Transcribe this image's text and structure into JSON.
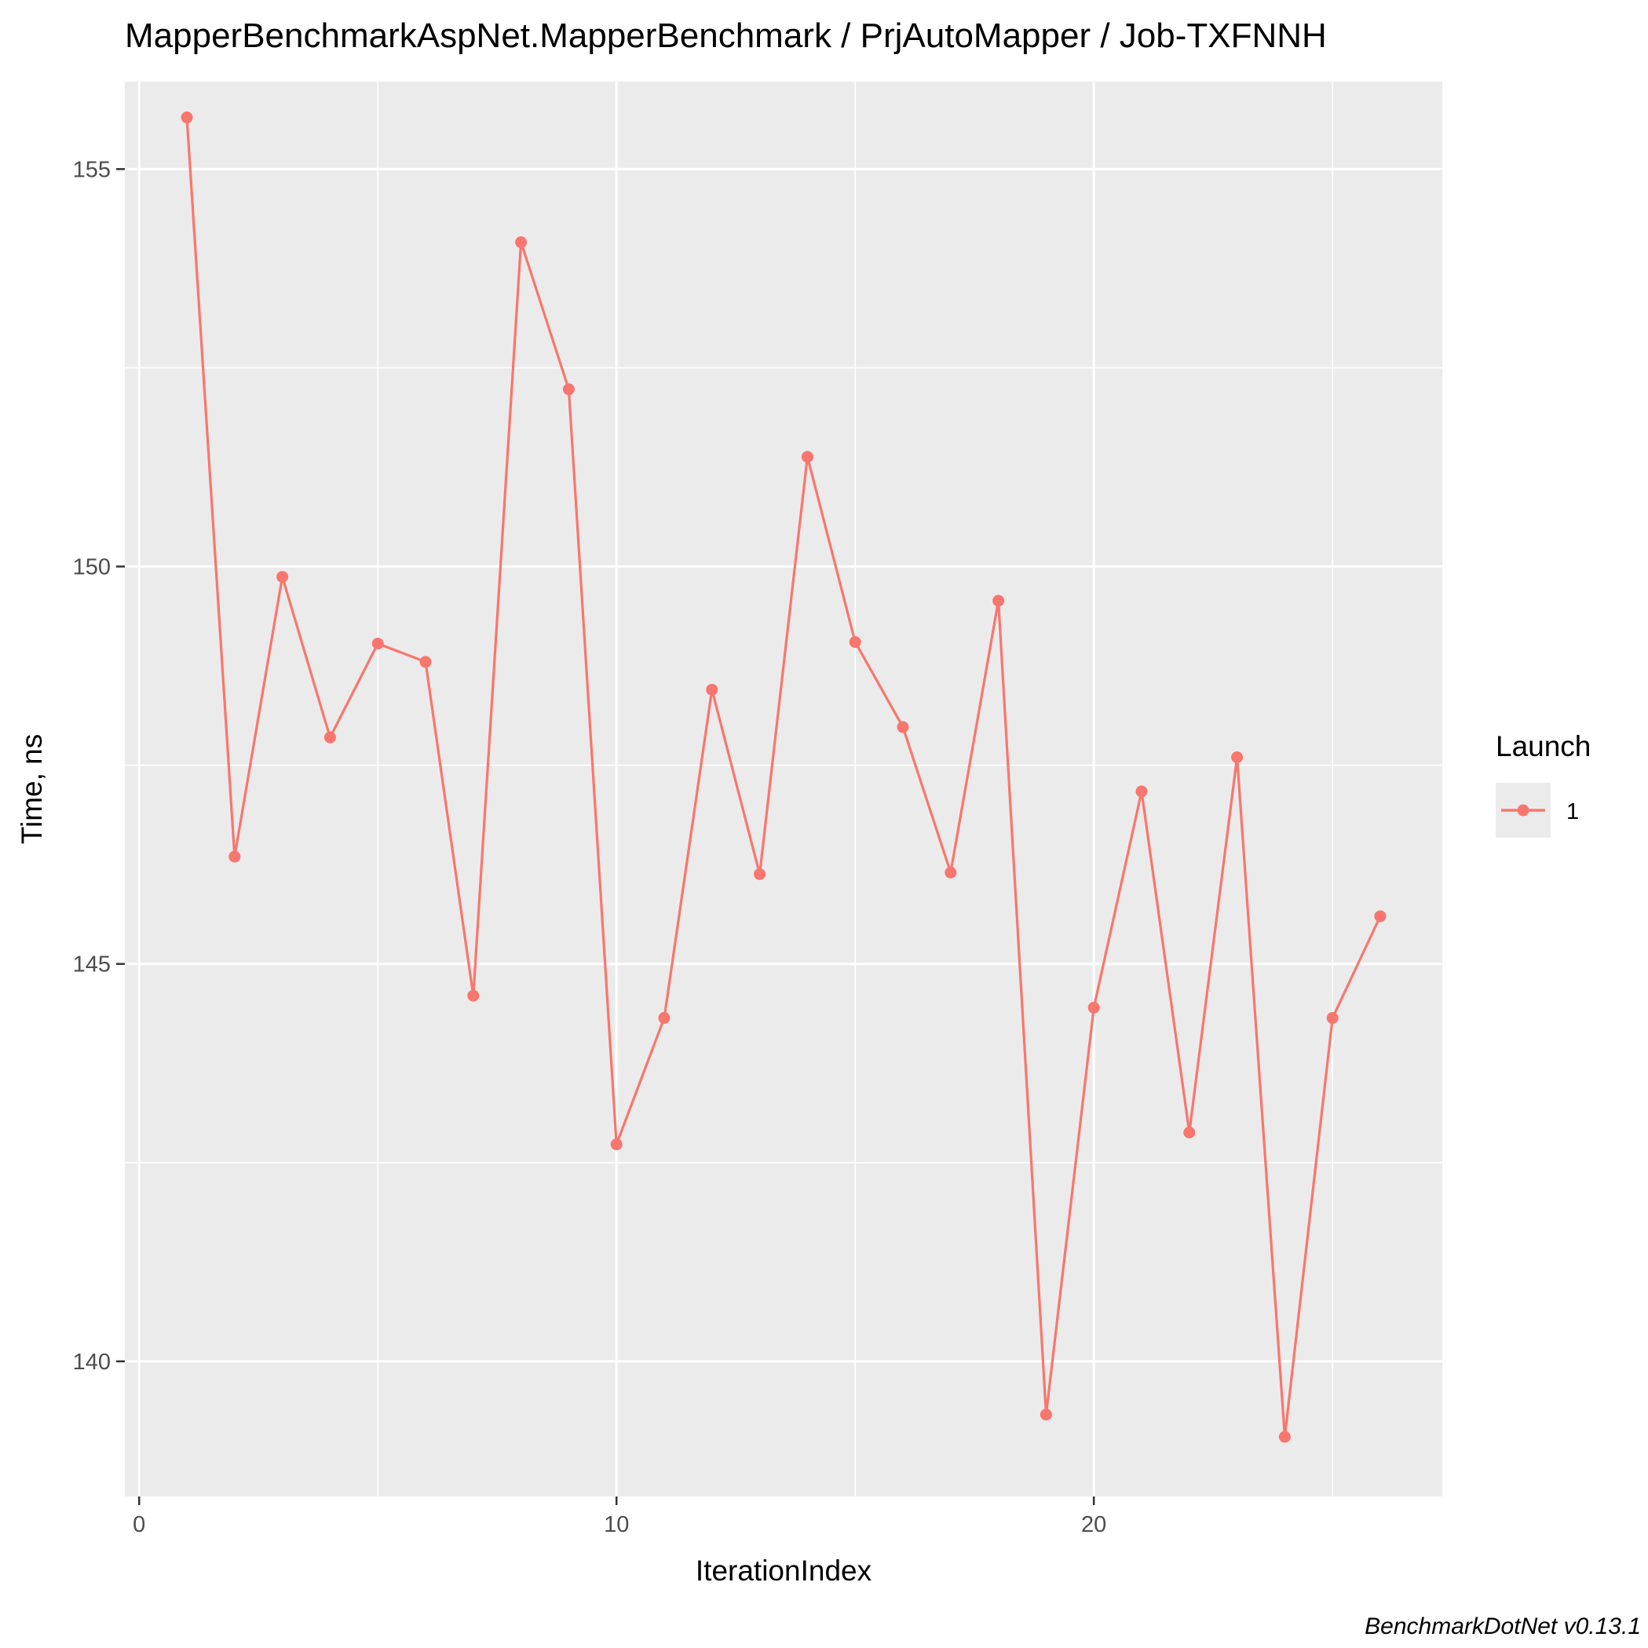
{
  "chart_data": {
    "type": "line",
    "title": "MapperBenchmarkAspNet.MapperBenchmark / PrjAutoMapper / Job-TXFNNH",
    "xlabel": "IterationIndex",
    "ylabel": "Time, ns",
    "caption": "BenchmarkDotNet v0.13.1",
    "xlim": [
      -0.3,
      27.3
    ],
    "ylim": [
      138.3,
      156.1
    ],
    "x_ticks": [
      0,
      10,
      20
    ],
    "x_minor": [
      5,
      15,
      25
    ],
    "y_ticks": [
      140,
      145,
      150,
      155
    ],
    "y_minor": [
      142.5,
      147.5,
      152.5
    ],
    "grid": true,
    "legend": {
      "title": "Launch",
      "position": "right",
      "entries": [
        "1"
      ]
    },
    "colors": {
      "series": "#f8766d",
      "panel": "#ebebeb",
      "grid": "#ffffff",
      "tick": "#333333"
    },
    "series": [
      {
        "name": "1",
        "x": [
          1,
          2,
          3,
          4,
          5,
          6,
          7,
          8,
          9,
          10,
          11,
          12,
          13,
          14,
          15,
          16,
          17,
          18,
          19,
          20,
          21,
          22,
          23,
          24,
          25,
          26
        ],
        "values": [
          155.65,
          146.35,
          149.87,
          147.85,
          149.03,
          148.8,
          144.6,
          154.08,
          152.23,
          142.73,
          144.32,
          148.45,
          146.13,
          151.38,
          149.05,
          147.98,
          146.15,
          149.57,
          139.33,
          144.45,
          147.17,
          142.88,
          147.6,
          139.05,
          144.32,
          145.6
        ]
      }
    ]
  }
}
